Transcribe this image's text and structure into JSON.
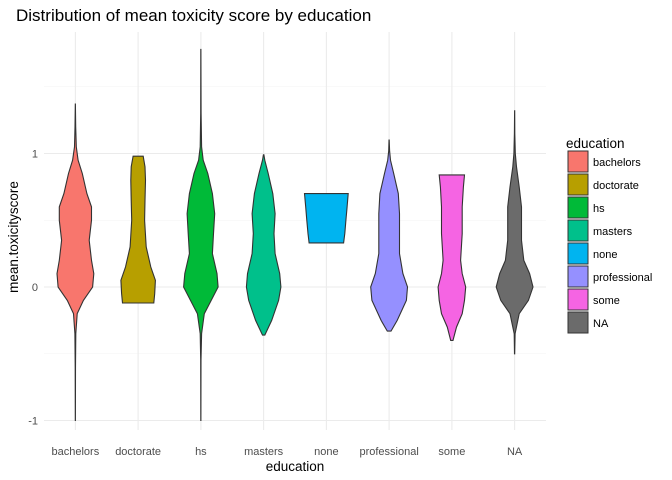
{
  "chart_data": {
    "type": "violin",
    "title": "Distribution of mean toxicity score by education",
    "xlabel": "education",
    "ylabel": "mean.toxicityscore",
    "ylim": [
      -1.05,
      1.85
    ],
    "yticks": [
      -1,
      0,
      1
    ],
    "ytick_labels": [
      "-1",
      "0",
      "1"
    ],
    "grid": true,
    "legend": {
      "title": "education",
      "placement": "right"
    },
    "categories": [
      "bachelors",
      "doctorate",
      "hs",
      "masters",
      "none",
      "professional",
      "some",
      "NA"
    ],
    "series": [
      {
        "name": "bachelors",
        "color": "#F8766D",
        "profile": [
          [
            -1.0,
            0.002
          ],
          [
            -0.6,
            0.006
          ],
          [
            -0.35,
            0.02
          ],
          [
            -0.2,
            0.08
          ],
          [
            -0.1,
            0.35
          ],
          [
            0.0,
            0.75
          ],
          [
            0.1,
            0.8
          ],
          [
            0.2,
            0.7
          ],
          [
            0.35,
            0.6
          ],
          [
            0.5,
            0.7
          ],
          [
            0.6,
            0.7
          ],
          [
            0.7,
            0.5
          ],
          [
            0.85,
            0.3
          ],
          [
            0.95,
            0.12
          ],
          [
            1.05,
            0.04
          ],
          [
            1.2,
            0.015
          ],
          [
            1.37,
            0.003
          ]
        ]
      },
      {
        "name": "doctorate",
        "color": "#B79F00",
        "profile": [
          [
            -0.12,
            0.68
          ],
          [
            -0.05,
            0.72
          ],
          [
            0.05,
            0.75
          ],
          [
            0.15,
            0.55
          ],
          [
            0.3,
            0.35
          ],
          [
            0.5,
            0.28
          ],
          [
            0.65,
            0.3
          ],
          [
            0.8,
            0.32
          ],
          [
            0.9,
            0.3
          ],
          [
            0.98,
            0.22
          ]
        ]
      },
      {
        "name": "hs",
        "color": "#00BA38",
        "profile": [
          [
            -1.0,
            0.002
          ],
          [
            -0.55,
            0.006
          ],
          [
            -0.35,
            0.03
          ],
          [
            -0.2,
            0.15
          ],
          [
            -0.1,
            0.45
          ],
          [
            0.0,
            0.75
          ],
          [
            0.1,
            0.7
          ],
          [
            0.25,
            0.5
          ],
          [
            0.4,
            0.55
          ],
          [
            0.55,
            0.6
          ],
          [
            0.7,
            0.5
          ],
          [
            0.85,
            0.3
          ],
          [
            0.95,
            0.1
          ],
          [
            1.05,
            0.03
          ],
          [
            1.3,
            0.008
          ],
          [
            1.78,
            0.002
          ]
        ]
      },
      {
        "name": "masters",
        "color": "#00C08B",
        "profile": [
          [
            -0.36,
            0.05
          ],
          [
            -0.25,
            0.35
          ],
          [
            -0.1,
            0.65
          ],
          [
            0.0,
            0.75
          ],
          [
            0.1,
            0.7
          ],
          [
            0.25,
            0.5
          ],
          [
            0.4,
            0.45
          ],
          [
            0.55,
            0.5
          ],
          [
            0.7,
            0.4
          ],
          [
            0.85,
            0.2
          ],
          [
            0.95,
            0.05
          ],
          [
            0.99,
            0.01
          ]
        ]
      },
      {
        "name": "none",
        "color": "#00B4F0",
        "profile": [
          [
            0.33,
            0.75
          ],
          [
            0.4,
            0.8
          ],
          [
            0.5,
            0.85
          ],
          [
            0.6,
            0.9
          ],
          [
            0.7,
            0.95
          ]
        ]
      },
      {
        "name": "professional",
        "color": "#9590FF",
        "profile": [
          [
            -0.33,
            0.08
          ],
          [
            -0.25,
            0.35
          ],
          [
            -0.1,
            0.75
          ],
          [
            0.0,
            0.8
          ],
          [
            0.1,
            0.6
          ],
          [
            0.25,
            0.45
          ],
          [
            0.4,
            0.45
          ],
          [
            0.55,
            0.45
          ],
          [
            0.7,
            0.4
          ],
          [
            0.85,
            0.2
          ],
          [
            0.95,
            0.06
          ],
          [
            1.02,
            0.02
          ],
          [
            1.1,
            0.004
          ]
        ]
      },
      {
        "name": "some",
        "color": "#F564E3",
        "profile": [
          [
            -0.4,
            0.05
          ],
          [
            -0.3,
            0.2
          ],
          [
            -0.2,
            0.45
          ],
          [
            -0.1,
            0.55
          ],
          [
            0.0,
            0.6
          ],
          [
            0.1,
            0.45
          ],
          [
            0.2,
            0.38
          ],
          [
            0.4,
            0.45
          ],
          [
            0.6,
            0.45
          ],
          [
            0.75,
            0.5
          ],
          [
            0.84,
            0.55
          ]
        ]
      },
      {
        "name": "NA",
        "color": "#6B6B6B",
        "profile": [
          [
            -0.5,
            0.004
          ],
          [
            -0.35,
            0.02
          ],
          [
            -0.2,
            0.2
          ],
          [
            -0.1,
            0.6
          ],
          [
            0.0,
            0.8
          ],
          [
            0.1,
            0.65
          ],
          [
            0.2,
            0.4
          ],
          [
            0.35,
            0.3
          ],
          [
            0.5,
            0.3
          ],
          [
            0.6,
            0.3
          ],
          [
            0.75,
            0.2
          ],
          [
            0.9,
            0.08
          ],
          [
            1.0,
            0.03
          ],
          [
            1.15,
            0.008
          ],
          [
            1.32,
            0.002
          ]
        ]
      }
    ]
  }
}
